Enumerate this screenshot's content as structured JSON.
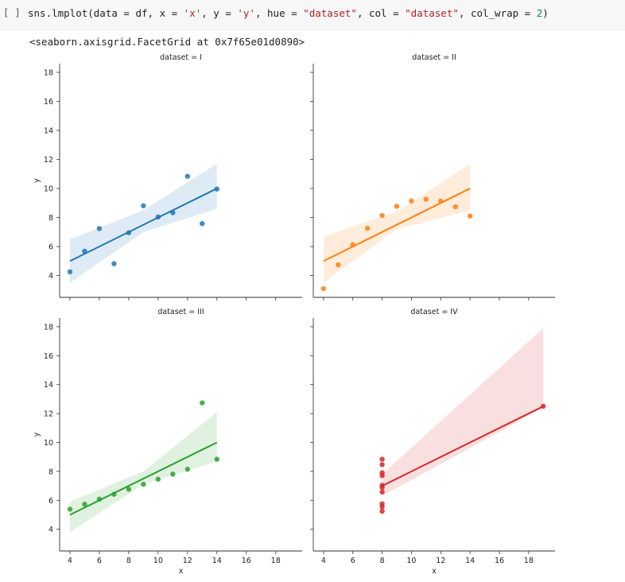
{
  "cell": {
    "prompt": "[ ]",
    "code": [
      {
        "t": "sns.lmplot(data = df, x = ",
        "c": "plain"
      },
      {
        "t": "'x'",
        "c": "str"
      },
      {
        "t": ", y = ",
        "c": "plain"
      },
      {
        "t": "'y'",
        "c": "str"
      },
      {
        "t": ", hue = ",
        "c": "plain"
      },
      {
        "t": "\"dataset\"",
        "c": "str"
      },
      {
        "t": ", col = ",
        "c": "plain"
      },
      {
        "t": "\"dataset\"",
        "c": "str"
      },
      {
        "t": ", col_wrap = ",
        "c": "plain"
      },
      {
        "t": "2",
        "c": "num"
      },
      {
        "t": ")",
        "c": "plain"
      }
    ],
    "output": "<seaborn.axisgrid.FacetGrid at 0x7f65e01d0890>"
  },
  "chart_data": [
    {
      "type": "scatter",
      "title": "dataset = I",
      "xlabel": "",
      "ylabel": "y",
      "xlim": [
        3.3,
        19.8
      ],
      "ylim": [
        2.5,
        18.6
      ],
      "xticks": [
        4,
        6,
        8,
        10,
        12,
        14,
        16,
        18
      ],
      "yticks": [
        4,
        6,
        8,
        10,
        12,
        14,
        16,
        18
      ],
      "color": "#1f77b4",
      "points": [
        [
          10,
          8.04
        ],
        [
          8,
          6.95
        ],
        [
          13,
          7.58
        ],
        [
          9,
          8.81
        ],
        [
          11,
          8.33
        ],
        [
          14,
          9.96
        ],
        [
          6,
          7.24
        ],
        [
          4,
          4.26
        ],
        [
          12,
          10.84
        ],
        [
          7,
          4.82
        ],
        [
          5,
          5.68
        ]
      ],
      "fit": {
        "x": [
          4,
          14
        ],
        "y": [
          5.0,
          10.0
        ]
      },
      "ci_upper": [
        [
          4,
          6.5
        ],
        [
          9,
          8.5
        ],
        [
          14,
          11.7
        ]
      ],
      "ci_lower": [
        [
          4,
          3.5
        ],
        [
          9,
          7.0
        ],
        [
          14,
          8.6
        ]
      ]
    },
    {
      "type": "scatter",
      "title": "dataset = II",
      "xlabel": "",
      "ylabel": "",
      "xlim": [
        3.3,
        19.8
      ],
      "ylim": [
        2.5,
        18.6
      ],
      "xticks": [
        4,
        6,
        8,
        10,
        12,
        14,
        16,
        18
      ],
      "yticks": [
        4,
        6,
        8,
        10,
        12,
        14,
        16,
        18
      ],
      "color": "#ff7f0e",
      "points": [
        [
          10,
          9.14
        ],
        [
          8,
          8.14
        ],
        [
          13,
          8.74
        ],
        [
          9,
          8.77
        ],
        [
          11,
          9.26
        ],
        [
          14,
          8.1
        ],
        [
          6,
          6.13
        ],
        [
          4,
          3.1
        ],
        [
          12,
          9.13
        ],
        [
          7,
          7.26
        ],
        [
          5,
          4.74
        ]
      ],
      "fit": {
        "x": [
          4,
          14
        ],
        "y": [
          5.0,
          10.0
        ]
      },
      "ci_upper": [
        [
          4,
          6.7
        ],
        [
          9,
          8.4
        ],
        [
          14,
          11.7
        ]
      ],
      "ci_lower": [
        [
          4,
          3.5
        ],
        [
          9,
          7.2
        ],
        [
          14,
          8.5
        ]
      ]
    },
    {
      "type": "scatter",
      "title": "dataset = III",
      "xlabel": "x",
      "ylabel": "y",
      "xlim": [
        3.3,
        19.8
      ],
      "ylim": [
        2.5,
        18.6
      ],
      "xticks": [
        4,
        6,
        8,
        10,
        12,
        14,
        16,
        18
      ],
      "yticks": [
        4,
        6,
        8,
        10,
        12,
        14,
        16,
        18
      ],
      "color": "#2ca02c",
      "points": [
        [
          10,
          7.46
        ],
        [
          8,
          6.77
        ],
        [
          13,
          12.74
        ],
        [
          9,
          7.11
        ],
        [
          11,
          7.81
        ],
        [
          14,
          8.84
        ],
        [
          6,
          6.08
        ],
        [
          4,
          5.39
        ],
        [
          12,
          8.15
        ],
        [
          7,
          6.42
        ],
        [
          5,
          5.73
        ]
      ],
      "fit": {
        "x": [
          4,
          14
        ],
        "y": [
          5.0,
          10.0
        ]
      },
      "ci_upper": [
        [
          4,
          5.9
        ],
        [
          9,
          8.0
        ],
        [
          14,
          12.1
        ]
      ],
      "ci_lower": [
        [
          4,
          3.8
        ],
        [
          9,
          7.1
        ],
        [
          14,
          8.7
        ]
      ]
    },
    {
      "type": "scatter",
      "title": "dataset = IV",
      "xlabel": "x",
      "ylabel": "",
      "xlim": [
        3.3,
        19.8
      ],
      "ylim": [
        2.5,
        18.6
      ],
      "xticks": [
        4,
        6,
        8,
        10,
        12,
        14,
        16,
        18
      ],
      "yticks": [
        4,
        6,
        8,
        10,
        12,
        14,
        16,
        18
      ],
      "color": "#d62728",
      "points": [
        [
          8,
          6.58
        ],
        [
          8,
          5.76
        ],
        [
          8,
          7.71
        ],
        [
          8,
          8.84
        ],
        [
          8,
          8.47
        ],
        [
          8,
          7.04
        ],
        [
          8,
          5.25
        ],
        [
          19,
          12.5
        ],
        [
          8,
          5.56
        ],
        [
          8,
          7.91
        ],
        [
          8,
          6.89
        ]
      ],
      "fit": {
        "x": [
          8,
          19
        ],
        "y": [
          7.0,
          12.5
        ]
      },
      "ci_upper": [
        [
          8,
          7.8
        ],
        [
          19,
          17.9
        ]
      ],
      "ci_lower": [
        [
          8,
          6.3
        ],
        [
          19,
          12.4
        ]
      ]
    }
  ]
}
